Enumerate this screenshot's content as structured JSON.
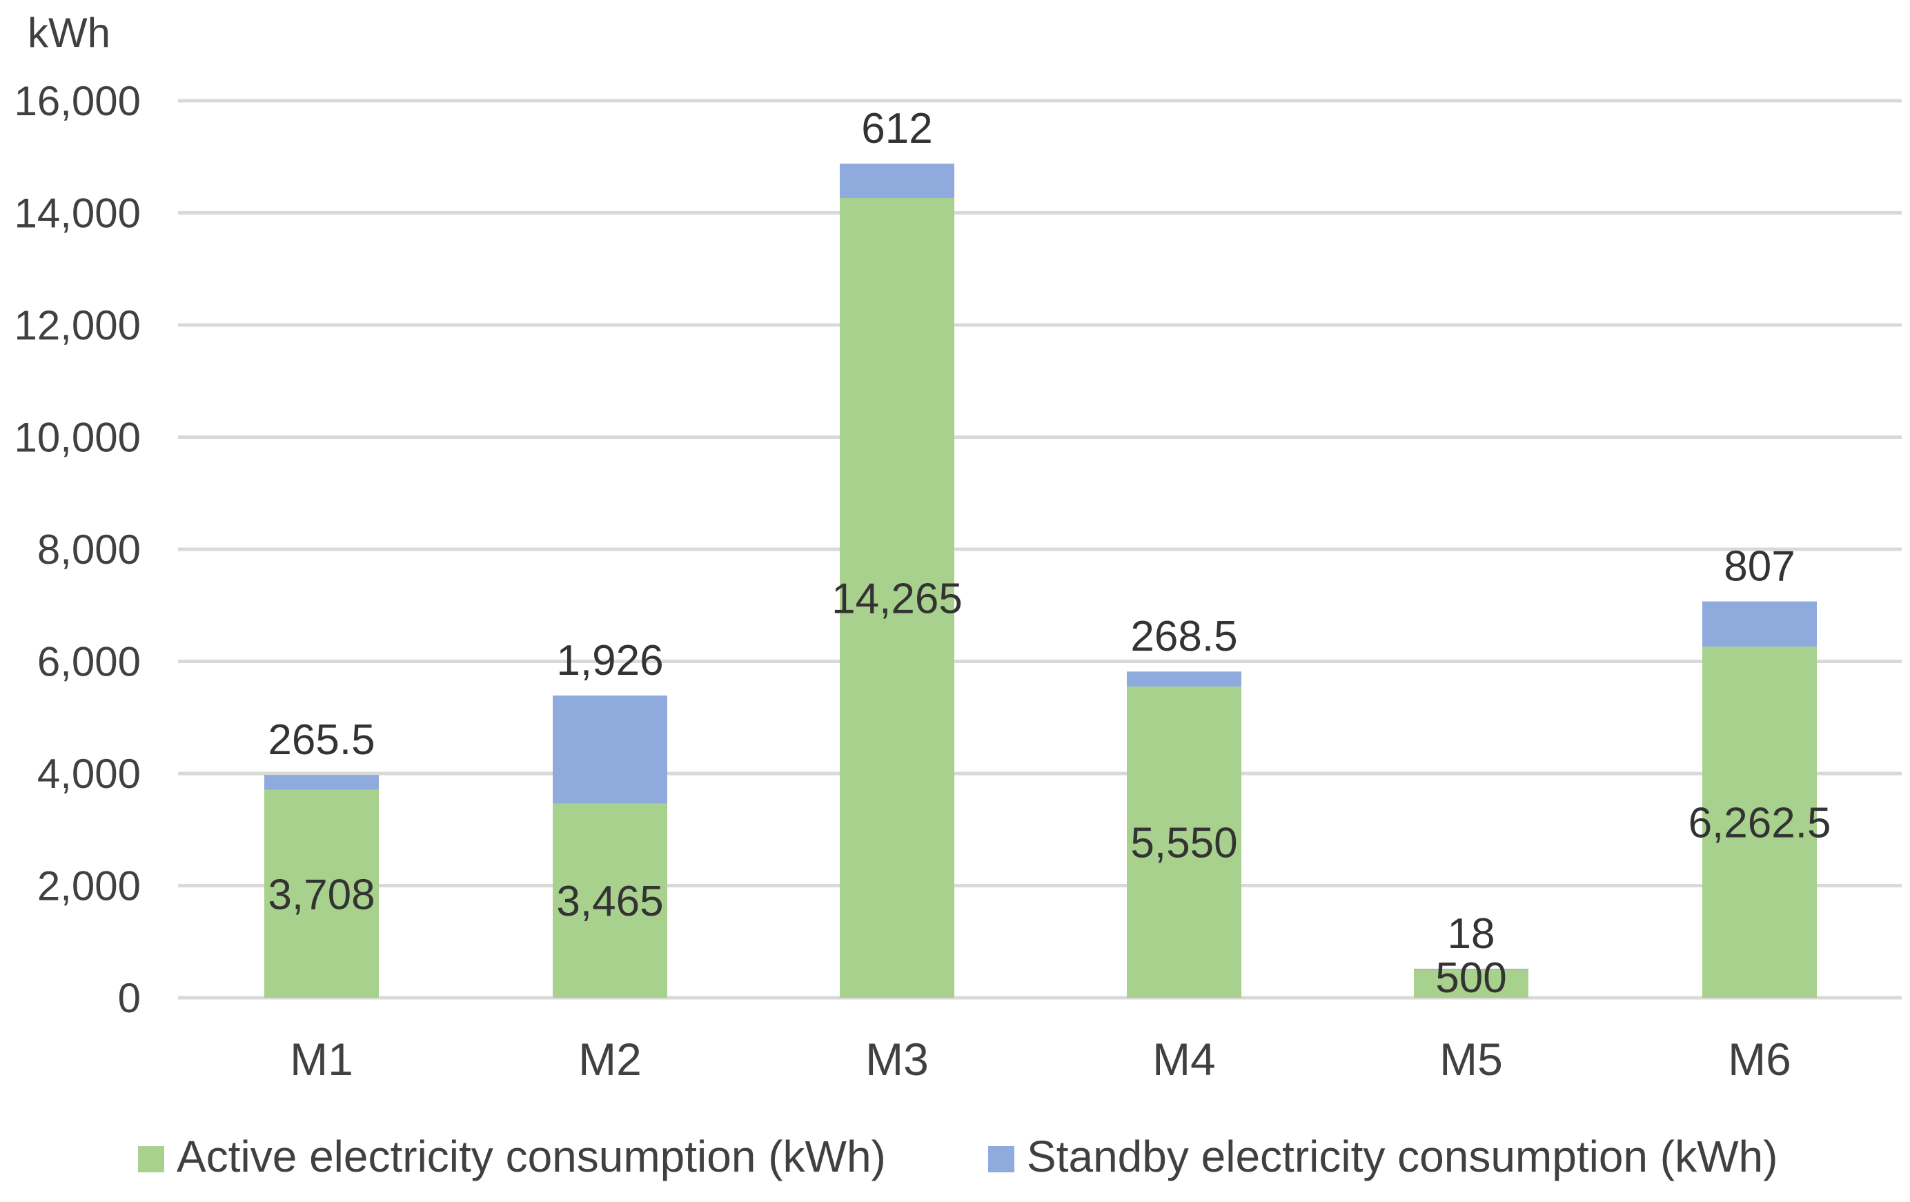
{
  "chart_data": {
    "type": "bar",
    "stacked": true,
    "title": "",
    "xlabel": "",
    "ylabel": "kWh",
    "ylim": [
      0,
      16000
    ],
    "yticks": [
      0,
      2000,
      4000,
      6000,
      8000,
      10000,
      12000,
      14000,
      16000
    ],
    "ytick_labels": [
      "0",
      "2,000",
      "4,000",
      "6,000",
      "8,000",
      "10,000",
      "12,000",
      "14,000",
      "16,000"
    ],
    "grid": true,
    "legend_position": "bottom",
    "categories": [
      "M1",
      "M2",
      "M3",
      "M4",
      "M5",
      "M6"
    ],
    "series": [
      {
        "name": "Active electricity consumption (kWh)",
        "color": "#a9d18e",
        "values": [
          3708,
          3465,
          14265,
          5550,
          500,
          6262.5
        ],
        "labels": [
          "3,708",
          "3,465",
          "14,265",
          "5,550",
          "500",
          "6,262.5"
        ]
      },
      {
        "name": "Standby electricity consumption (kWh)",
        "color": "#8faadc",
        "values": [
          265.5,
          1926,
          612,
          268.5,
          18,
          807
        ],
        "labels": [
          "265.5",
          "1,926",
          "612",
          "268.5",
          "18",
          "807"
        ]
      }
    ]
  }
}
